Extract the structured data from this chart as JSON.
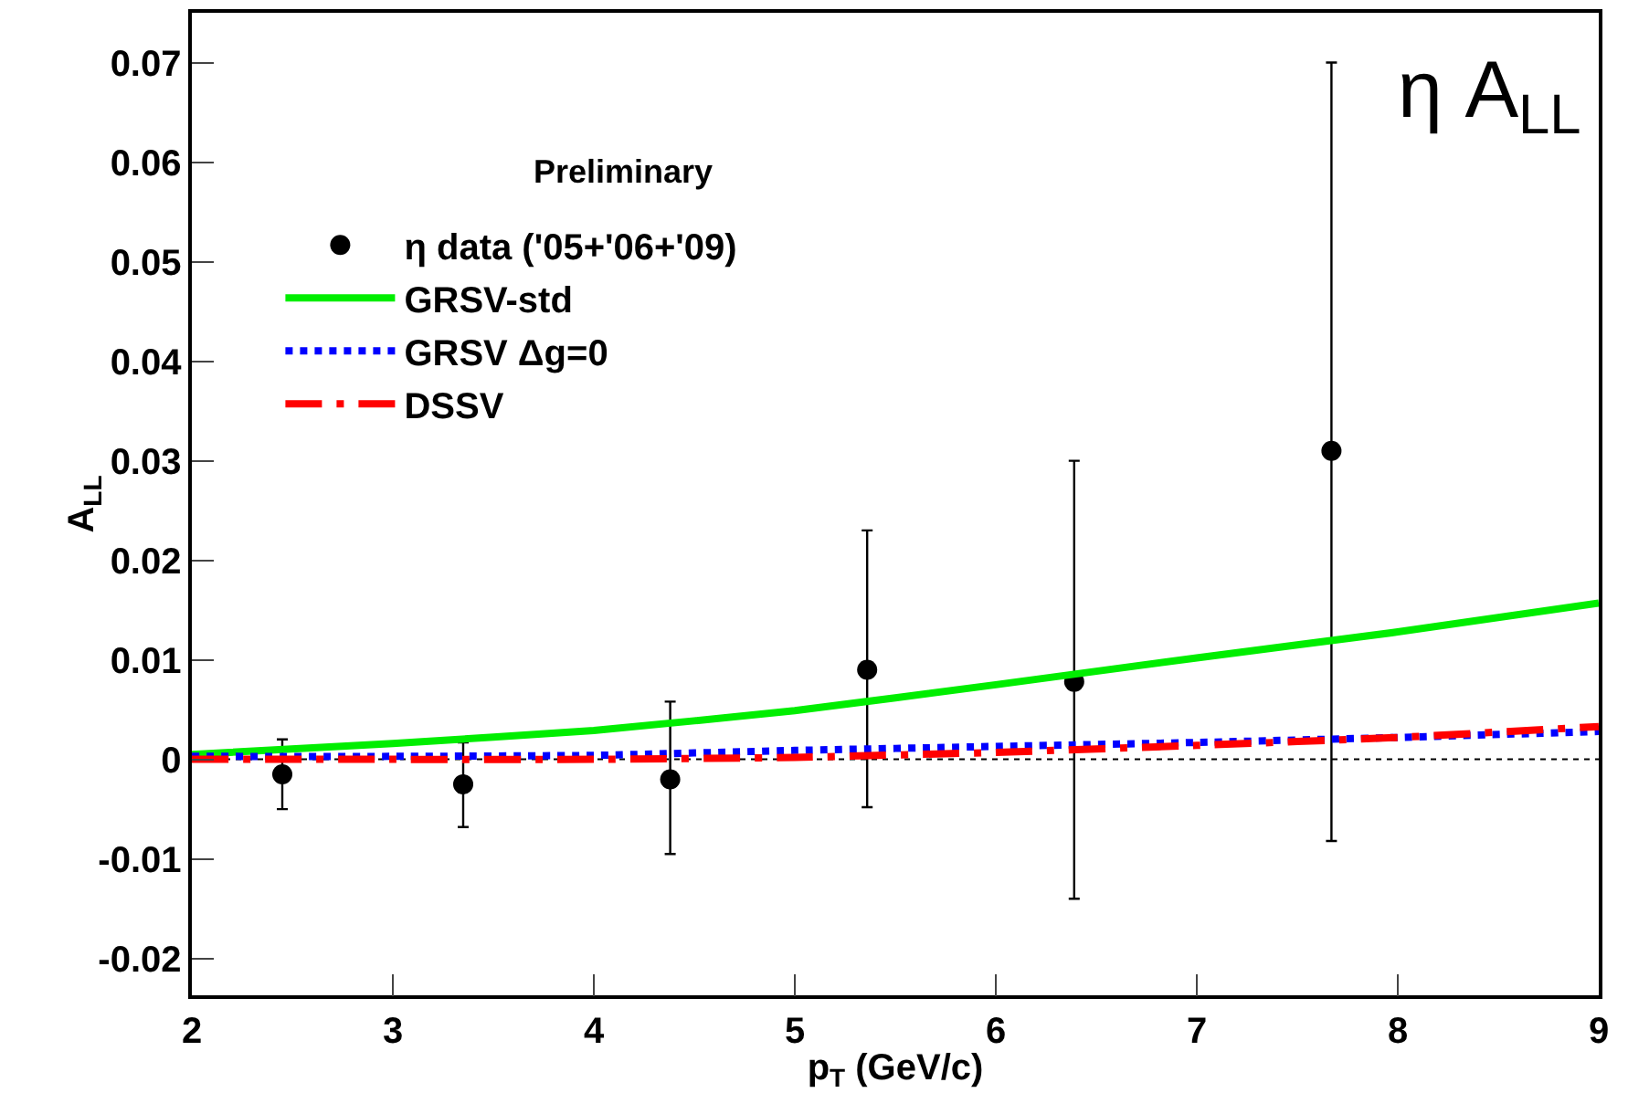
{
  "chart_data": {
    "type": "scatter",
    "xlabel": "p$_{T}$ (GeV/c)",
    "ylabel": "A$_{LL}$",
    "annotations": [
      "η A$_{LL}$",
      "Preliminary"
    ],
    "xlim": [
      2,
      9
    ],
    "xticks": [
      2,
      3,
      4,
      5,
      6,
      7,
      8,
      9
    ],
    "ylim": [
      -0.0237,
      0.075
    ],
    "yticks": [
      -0.02,
      -0.01,
      0,
      0.01,
      0.02,
      0.03,
      0.04,
      0.05,
      0.06,
      0.07
    ],
    "grid": false,
    "legend": "top left",
    "ref_lines": [
      {
        "axis": "y",
        "value": 0,
        "color": "#000000",
        "line_style": "dotted"
      }
    ],
    "series": [
      {
        "name": "η data ('05+'06+'09)",
        "color": "#000000",
        "marker": "circle",
        "x": [
          2.45,
          3.35,
          4.38,
          5.36,
          6.39,
          7.67
        ],
        "values": [
          -0.0015,
          -0.0025,
          -0.002,
          0.009,
          0.0078,
          0.031
        ],
        "errors": [
          [
            -0.005,
            0.002
          ],
          [
            -0.0068,
            0.0017
          ],
          [
            -0.0095,
            0.0058
          ],
          [
            -0.0048,
            0.023
          ],
          [
            -0.014,
            0.03
          ],
          [
            -0.0082,
            0.07
          ]
        ]
      },
      {
        "name": "GRSV-std",
        "type": "line",
        "color": "#00ee00",
        "line_style": "solid",
        "marker": "none",
        "x": [
          2,
          3,
          4,
          5,
          6,
          7,
          8,
          9
        ],
        "values": [
          0.0005,
          0.0016,
          0.0029,
          0.0049,
          0.0075,
          0.0102,
          0.0128,
          0.0157
        ]
      },
      {
        "name": "GRSV Δg=0",
        "type": "line",
        "color": "#0000ff",
        "line_style": "dotted",
        "marker": "none",
        "x": [
          2,
          3,
          4,
          5,
          6,
          7,
          8,
          9
        ],
        "values": [
          0.0003,
          0.0003,
          0.0004,
          0.0009,
          0.0013,
          0.0017,
          0.0022,
          0.0028
        ]
      },
      {
        "name": "DSSV",
        "type": "line",
        "color": "#ff0000",
        "line_style": "dashed",
        "marker": "none",
        "x": [
          2,
          3,
          4,
          5,
          6,
          7,
          8,
          9
        ],
        "values": [
          0,
          0,
          0,
          0.0002,
          0.0007,
          0.0014,
          0.0022,
          0.0033
        ]
      }
    ]
  }
}
